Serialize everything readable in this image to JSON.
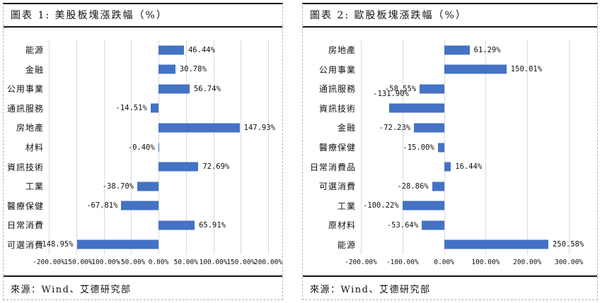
{
  "panels": [
    {
      "title": "圖表 1: 美股板塊漲跌幅（%）",
      "source": "來源：Wind、艾德研究部"
    },
    {
      "title": "圖表 2: 歐股板塊漲跌幅（%）",
      "source": "來源：Wind、艾德研究部"
    }
  ],
  "chart_data": [
    {
      "type": "bar",
      "orientation": "horizontal",
      "title": "美股板塊漲跌幅（%）",
      "bar_color": "#4472C4",
      "gridline_color": "#d9d9d9",
      "grid": true,
      "xlim": [
        -200,
        200
      ],
      "xtick_step": 50,
      "xticks": [
        "-200.00%",
        "-150.00%",
        "-100.00%",
        "-50.00%",
        "0.00%",
        "50.00%",
        "100.00%",
        "150.00%",
        "200.00%"
      ],
      "categories": [
        "能源",
        "金融",
        "公用事業",
        "通訊服務",
        "房地產",
        "材料",
        "資訊技術",
        "工業",
        "醫療保健",
        "日常消費",
        "可選消費"
      ],
      "values": [
        46.44,
        30.78,
        56.74,
        -14.51,
        147.93,
        -0.4,
        72.69,
        -38.7,
        -67.81,
        65.91,
        -148.95
      ],
      "labels": [
        "46.44%",
        "30.78%",
        "56.74%",
        "-14.51%",
        "147.93%",
        "-0.40%",
        "72.69%",
        "-38.70%",
        "-67.81%",
        "65.91%",
        "-148.95%"
      ],
      "label_above": []
    },
    {
      "type": "bar",
      "orientation": "horizontal",
      "title": "歐股板塊漲跌幅（%）",
      "bar_color": "#4472C4",
      "gridline_color": "#d9d9d9",
      "grid": true,
      "xlim": [
        -200,
        300
      ],
      "xtick_step": 100,
      "xticks": [
        "-200.00%",
        "-100.00%",
        "0.00%",
        "100.00%",
        "200.00%",
        "300.00%"
      ],
      "categories": [
        "房地產",
        "公用事業",
        "通訊服務",
        "資訊技術",
        "金融",
        "醫療保健",
        "日常消費品",
        "可選消費",
        "工業",
        "原材料",
        "能源"
      ],
      "values": [
        61.29,
        150.01,
        -58.55,
        -131.9,
        -72.23,
        -15.0,
        16.44,
        -28.86,
        -100.22,
        -53.64,
        250.58
      ],
      "labels": [
        "61.29%",
        "150.01%",
        "-58.55%",
        "-131.90%",
        "-72.23%",
        "-15.00%",
        "16.44%",
        "-28.86%",
        "-100.22%",
        "-53.64%",
        "250.58%"
      ],
      "label_above": [
        3
      ]
    }
  ]
}
